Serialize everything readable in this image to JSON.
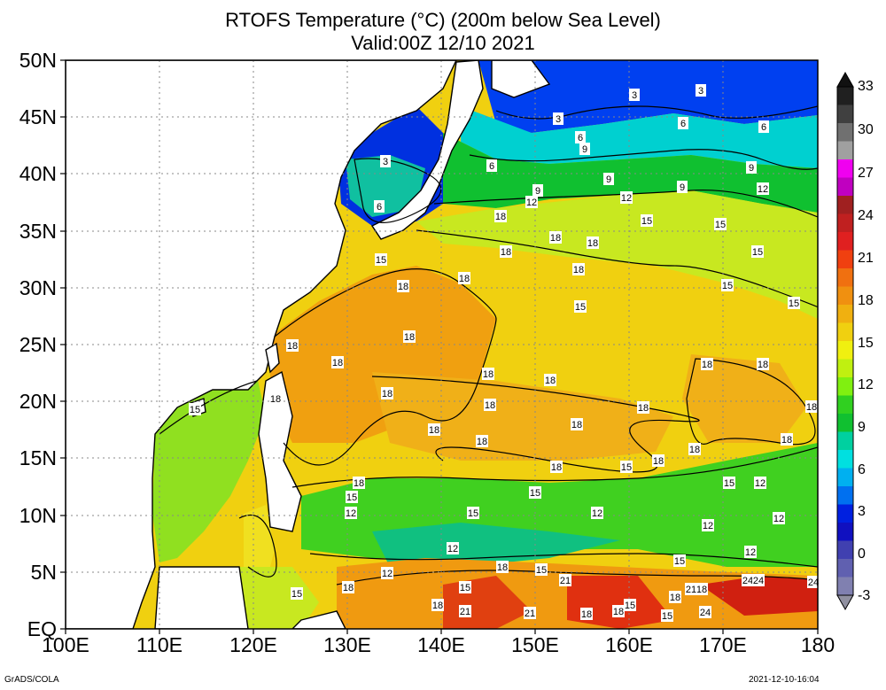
{
  "map": {
    "title_line1": "RTOFS Temperature (°C) (200m below Sea Level)",
    "title_line2": "Valid:00Z 12/10 2021",
    "lat_labels": [
      "50N",
      "45N",
      "40N",
      "35N",
      "30N",
      "25N",
      "20N",
      "15N",
      "10N",
      "5N",
      "EQ"
    ],
    "lon_labels": [
      "100E",
      "110E",
      "120E",
      "130E",
      "140E",
      "150E",
      "160E",
      "170E",
      "180"
    ],
    "contour_labels": [
      "3",
      "6",
      "9",
      "12",
      "15",
      "18",
      "21",
      "24"
    ],
    "colorbar": {
      "labels": [
        "33",
        "30",
        "27",
        "24",
        "21",
        "18",
        "15",
        "12",
        "9",
        "6",
        "3",
        "0",
        "-3"
      ],
      "colors": [
        "#202020",
        "#404040",
        "#707070",
        "#a0a0a0",
        "#f000f0",
        "#c000c0",
        "#a02020",
        "#c02020",
        "#e02020",
        "#f04010",
        "#f07010",
        "#f09010",
        "#f0b010",
        "#f0d010",
        "#f0f010",
        "#c0f010",
        "#80f010",
        "#30d020",
        "#10c030",
        "#00d0a0",
        "#00e0e0",
        "#00b0f0",
        "#0070f0",
        "#0020e0",
        "#1010c0",
        "#4040b0",
        "#6060b0",
        "#8080b0"
      ],
      "triangle_top": "#111111",
      "triangle_bottom": "#9090a0"
    },
    "footer_left": "GrADS/COLA",
    "footer_right": "2021-12-10-16:04"
  }
}
